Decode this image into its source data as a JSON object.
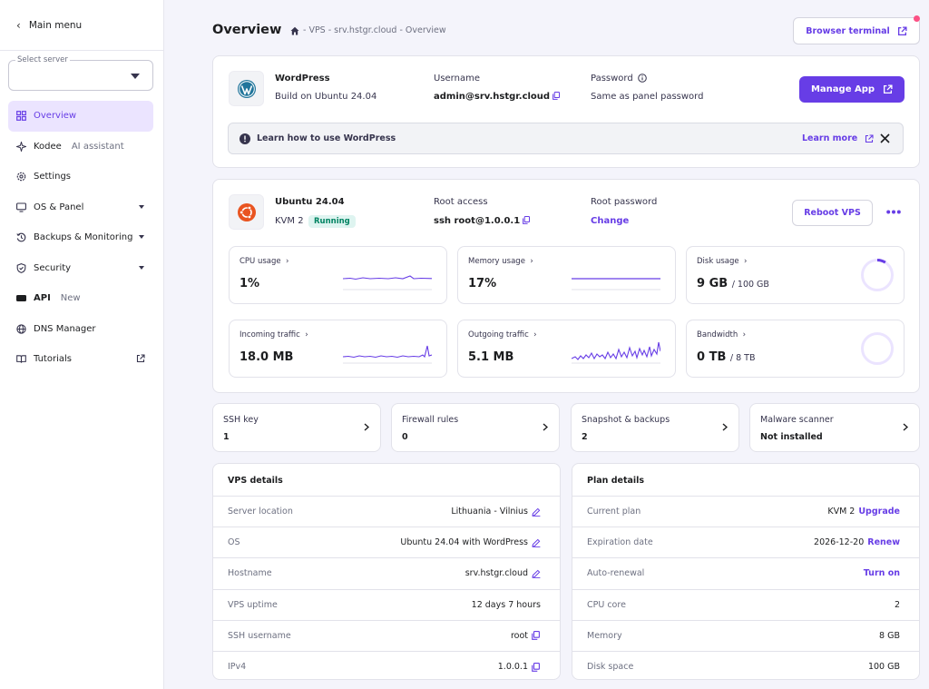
{
  "sidebar": {
    "main_menu": "Main menu",
    "select_label": "Select server",
    "items": [
      {
        "label": "Overview",
        "sub": ""
      },
      {
        "label": "Kodee",
        "sub": "AI assistant"
      },
      {
        "label": "Settings",
        "sub": ""
      },
      {
        "label": "OS & Panel",
        "sub": ""
      },
      {
        "label": "Backups & Monitoring",
        "sub": ""
      },
      {
        "label": "Security",
        "sub": ""
      },
      {
        "label": "API",
        "sub": "New"
      },
      {
        "label": "DNS Manager",
        "sub": ""
      },
      {
        "label": "Tutorials",
        "sub": ""
      }
    ]
  },
  "header": {
    "title": "Overview",
    "breadcrumb": "- VPS - srv.hstgr.cloud - Overview",
    "browser_terminal": "Browser terminal"
  },
  "app_card": {
    "name": "WordPress",
    "build": "Build on Ubuntu 24.04",
    "username_label": "Username",
    "username": "admin@srv.hstgr.cloud",
    "password_label": "Password",
    "password_value": "Same as panel password",
    "manage_button": "Manage App",
    "info_text": "Learn how to use WordPress",
    "learn_more": "Learn more"
  },
  "vps_card": {
    "os_name": "Ubuntu 24.04",
    "plan": "KVM 2",
    "status": "Running",
    "root_access_label": "Root access",
    "root_access": "ssh root@1.0.0.1",
    "root_password_label": "Root password",
    "root_password_action": "Change",
    "reboot_button": "Reboot VPS"
  },
  "metrics": {
    "cpu": {
      "label": "CPU usage",
      "value": "1%"
    },
    "memory": {
      "label": "Memory usage",
      "value": "17%"
    },
    "disk": {
      "label": "Disk usage",
      "value": "9 GB",
      "total": "/ 100 GB",
      "fraction": 0.09
    },
    "incoming": {
      "label": "Incoming traffic",
      "value": "18.0 MB"
    },
    "outgoing": {
      "label": "Outgoing traffic",
      "value": "5.1 MB"
    },
    "bandwidth": {
      "label": "Bandwidth",
      "value": "0 TB",
      "total": "/ 8 TB",
      "fraction": 0
    }
  },
  "quick_links": [
    {
      "label": "SSH key",
      "value": "1"
    },
    {
      "label": "Firewall rules",
      "value": "0"
    },
    {
      "label": "Snapshot & backups",
      "value": "2"
    },
    {
      "label": "Malware scanner",
      "value": "Not installed"
    }
  ],
  "vps_details": {
    "title": "VPS details",
    "rows": [
      {
        "key": "Server location",
        "value": "Lithuania - Vilnius"
      },
      {
        "key": "OS",
        "value": "Ubuntu 24.04 with WordPress"
      },
      {
        "key": "Hostname",
        "value": "srv.hstgr.cloud"
      },
      {
        "key": "VPS uptime",
        "value": "12 days 7 hours"
      },
      {
        "key": "SSH username",
        "value": "root"
      },
      {
        "key": "IPv4",
        "value": "1.0.0.1"
      }
    ]
  },
  "plan_details": {
    "title": "Plan details",
    "rows": [
      {
        "key": "Current plan",
        "value": "KVM 2",
        "action": "Upgrade"
      },
      {
        "key": "Expiration date",
        "value": "2026-12-20",
        "action": "Renew"
      },
      {
        "key": "Auto-renewal",
        "value": "",
        "action": "Turn on"
      },
      {
        "key": "CPU core",
        "value": "2",
        "action": ""
      },
      {
        "key": "Memory",
        "value": "8 GB",
        "action": ""
      },
      {
        "key": "Disk space",
        "value": "100 GB",
        "action": ""
      }
    ]
  },
  "colors": {
    "accent": "#673de6",
    "running_bg": "#def4f0",
    "running_text": "#008361",
    "notification": "#fc5185"
  }
}
